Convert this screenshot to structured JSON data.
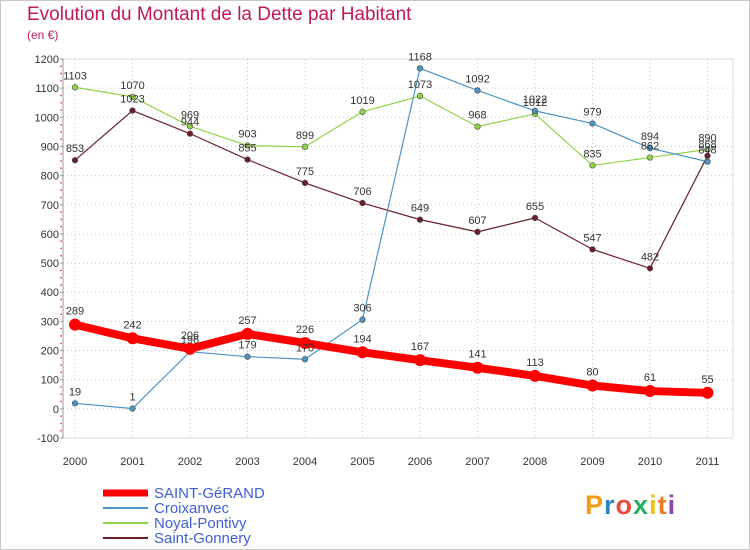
{
  "header": {
    "title": "Evolution du Montant de la Dette par Habitant",
    "unit": "(en €)"
  },
  "logo": {
    "text": "Proxiti",
    "letter_colors": [
      "#f39c12",
      "#2e86c1",
      "#e74c3c",
      "#27ae60",
      "#f1c40f",
      "#e67e22",
      "#8e44ad"
    ]
  },
  "chart_data": {
    "type": "line",
    "title": "Evolution du Montant de la Dette par Habitant",
    "ylabel": "(en €)",
    "xlabel": "",
    "x": [
      "2000",
      "2001",
      "2002",
      "2003",
      "2004",
      "2005",
      "2006",
      "2007",
      "2008",
      "2009",
      "2010",
      "2011"
    ],
    "ylim": [
      -100,
      1200
    ],
    "yticks": [
      -100,
      0,
      100,
      200,
      300,
      400,
      500,
      600,
      700,
      800,
      900,
      1000,
      1100,
      1200
    ],
    "grid": true,
    "legend_position": "bottom-left",
    "series": [
      {
        "name": "Saint-Gonnery",
        "color": "#6b1f2a",
        "width": 1.2,
        "marker": 2.8,
        "labels": true,
        "values": [
          853,
          1023,
          944,
          855,
          775,
          706,
          649,
          607,
          655,
          547,
          482,
          868
        ]
      },
      {
        "name": "Noyal-Pontivy",
        "color": "#8fd448",
        "width": 1.2,
        "marker": 2.8,
        "labels": true,
        "values": [
          1103,
          1070,
          969,
          903,
          899,
          1019,
          1073,
          968,
          1012,
          835,
          862,
          890
        ]
      },
      {
        "name": "Croixanvec",
        "color": "#4d94c6",
        "width": 1.2,
        "marker": 2.8,
        "labels": true,
        "values": [
          19,
          1,
          196,
          179,
          170,
          306,
          1168,
          1092,
          1022,
          979,
          894,
          848
        ]
      },
      {
        "name": "SAINT-GéRAND",
        "color": "#ff0000",
        "width": 8,
        "marker": 6,
        "labels": true,
        "values": [
          289,
          242,
          206,
          257,
          226,
          194,
          167,
          141,
          113,
          80,
          61,
          55
        ]
      }
    ]
  }
}
